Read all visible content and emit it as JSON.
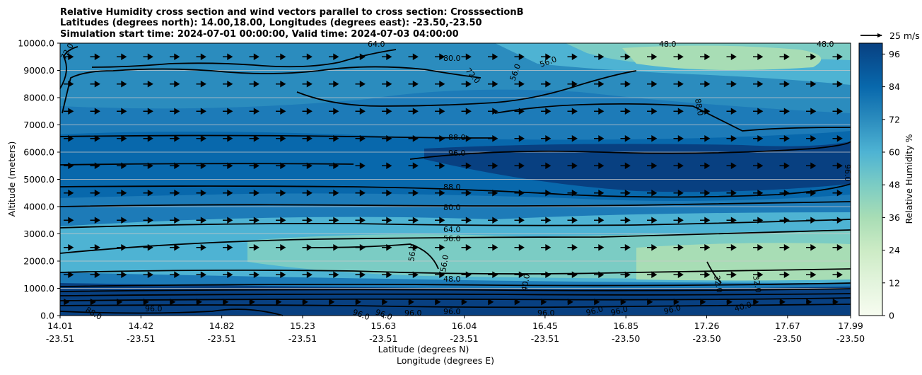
{
  "chart_data": {
    "type": "contour-cross-section",
    "title": [
      "Relative Humidity cross section and wind vectors parallel to cross section: CrosssectionB",
      "Latitudes (degrees north): 14.00,18.00, Longitudes (degrees east): -23.50,-23.50",
      "Simulation start time: 2024-07-01 00:00:00, Valid time: 2024-07-03 04:00:00"
    ],
    "ylabel": "Altitude (meters)",
    "xlabel": "Latitude (degrees N)",
    "xlabel2": "Longitude (degrees E)",
    "y_ticks": [
      "0.0",
      "1000.0",
      "2000.0",
      "3000.0",
      "4000.0",
      "5000.0",
      "6000.0",
      "7000.0",
      "8000.0",
      "9000.0",
      "10000.0"
    ],
    "ylim": [
      0,
      10000
    ],
    "x_ticks": [
      {
        "lat": "14.01",
        "lon": "-23.51"
      },
      {
        "lat": "14.42",
        "lon": "-23.51"
      },
      {
        "lat": "14.82",
        "lon": "-23.51"
      },
      {
        "lat": "15.23",
        "lon": "-23.51"
      },
      {
        "lat": "15.63",
        "lon": "-23.51"
      },
      {
        "lat": "16.04",
        "lon": "-23.51"
      },
      {
        "lat": "16.45",
        "lon": "-23.51"
      },
      {
        "lat": "16.85",
        "lon": "-23.50"
      },
      {
        "lat": "17.26",
        "lon": "-23.50"
      },
      {
        "lat": "17.67",
        "lon": "-23.50"
      },
      {
        "lat": "17.99",
        "lon": "-23.50"
      }
    ],
    "colorbar": {
      "label": "Relative Humidity %",
      "ticks": [
        "0",
        "12",
        "24",
        "36",
        "48",
        "60",
        "72",
        "84",
        "96"
      ],
      "range": [
        0,
        100
      ],
      "levels": 25
    },
    "quiver_key": "25 m/s",
    "contour_labels": [
      "72.0",
      "64.0",
      "80.0",
      "72.0",
      "56.0",
      "56.0",
      "48.0",
      "48.0",
      "88.0",
      "88.0",
      "96.0",
      "88.0",
      "80.0",
      "64.0",
      "56.0",
      "56.0",
      "56.0",
      "48.0",
      "40.0",
      "32.0",
      "32.0",
      "96.0",
      "88.0",
      "96.0",
      "96.0",
      "96.0",
      "96.0",
      "96.0",
      "96.0",
      "96.0",
      "96.0",
      "96.0",
      "40.0"
    ]
  }
}
